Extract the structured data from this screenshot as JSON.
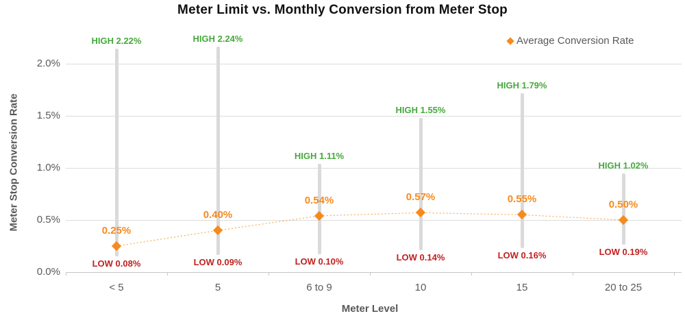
{
  "title": "Meter Limit vs. Monthly Conversion from Meter Stop",
  "legend": {
    "label": "Average Conversion Rate"
  },
  "chart_data": {
    "type": "scatter",
    "title": "Meter Limit vs. Monthly Conversion from Meter Stop",
    "xlabel": "Meter Level",
    "ylabel": "Meter Stop Conversion Rate",
    "categories": [
      "< 5",
      "5",
      "6 to 9",
      "10",
      "15",
      "20 to 25"
    ],
    "series": [
      {
        "name": "Average Conversion Rate",
        "values": [
          0.25,
          0.4,
          0.54,
          0.57,
          0.55,
          0.5
        ],
        "labels": [
          "0.25%",
          "0.40%",
          "0.54%",
          "0.57%",
          "0.55%",
          "0.50%"
        ]
      },
      {
        "name": "High",
        "values": [
          2.22,
          2.24,
          1.11,
          1.55,
          1.79,
          1.02
        ],
        "labels": [
          "2.22%",
          "2.24%",
          "1.11%",
          "1.55%",
          "1.79%",
          "1.02%"
        ]
      },
      {
        "name": "Low",
        "values": [
          0.08,
          0.09,
          0.1,
          0.14,
          0.16,
          0.19
        ],
        "labels": [
          "0.08%",
          "0.09%",
          "0.10%",
          "0.14%",
          "0.16%",
          "0.19%"
        ]
      }
    ],
    "high_prefix": "HIGH",
    "low_prefix": "LOW",
    "ylim": [
      0,
      2.0
    ],
    "yticks": {
      "values": [
        0.0,
        0.5,
        1.0,
        1.5,
        2.0
      ],
      "labels": [
        "0.0%",
        "0.5%",
        "1.0%",
        "1.5%",
        "2.0%"
      ]
    },
    "grid": true,
    "legend_position": "top-right",
    "colors": {
      "average": "#F68A1E",
      "trend": "#F9A952",
      "high": "#46A83C",
      "low": "#C21F1F",
      "error_bar": "#DADADA",
      "gridline": "#DCDCDC",
      "axis_text": "#595959",
      "title_text": "#111111"
    }
  }
}
